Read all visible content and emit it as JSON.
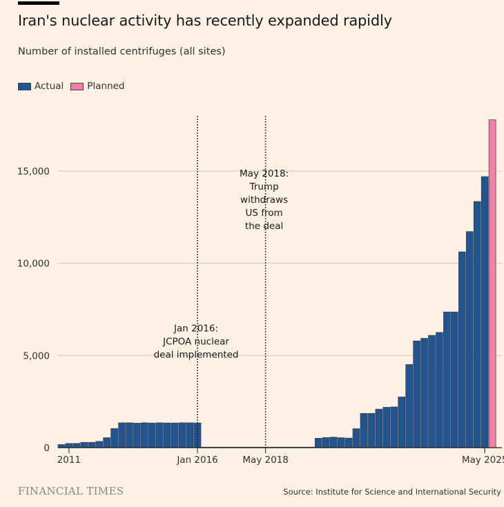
{
  "title": "Iran's nuclear activity has recently expanded rapidly",
  "subtitle": "Number of installed centrifuges (all sites)",
  "legend": {
    "actual": "Actual",
    "planned": "Planned"
  },
  "footer": {
    "brand": "FINANCIAL TIMES",
    "source": "Source: Institute for Science and International Security"
  },
  "colors": {
    "actual": "#1f5592",
    "planned": "#f280aa",
    "background": "#fff1e5",
    "grid": "#cec6b9"
  },
  "chart_data": {
    "type": "bar",
    "ylim": [
      0,
      17500
    ],
    "yticks": [
      0,
      5000,
      10000,
      15000
    ],
    "ytick_labels": [
      "0",
      "5,000",
      "10,000",
      "15,000"
    ],
    "x_labels": [
      {
        "index": 1,
        "label": "2011"
      },
      {
        "index": 18,
        "label": "Jan 2016"
      },
      {
        "index": 27,
        "label": "May 2018"
      },
      {
        "index": 56,
        "label": "May 2025"
      }
    ],
    "annotations": [
      {
        "index": 18,
        "lines": [
          "Jan 2016:",
          "JCPOA nuclear",
          "deal implemented"
        ],
        "value_top": 6300
      },
      {
        "index": 27,
        "lines": [
          "May 2018:",
          "Trump",
          "withdraws",
          "US from",
          "the deal"
        ],
        "value_top": 14700
      }
    ],
    "series": [
      {
        "name": "Actual",
        "values": [
          170,
          230,
          230,
          290,
          290,
          340,
          540,
          1040,
          1350,
          1350,
          1330,
          1350,
          1340,
          1350,
          1340,
          1340,
          1350,
          1350,
          1340,
          30,
          30,
          30,
          30,
          30,
          30,
          30,
          30,
          30,
          30,
          30,
          30,
          30,
          30,
          30,
          510,
          550,
          570,
          540,
          520,
          1030,
          1860,
          1860,
          2090,
          2190,
          2210,
          2750,
          4510,
          5790,
          5930,
          6090,
          6250,
          7360,
          7360,
          10620,
          11720,
          13350,
          14700,
          null
        ]
      },
      {
        "name": "Planned",
        "values": [
          null,
          null,
          null,
          null,
          null,
          null,
          null,
          null,
          null,
          null,
          null,
          null,
          null,
          null,
          null,
          null,
          null,
          null,
          null,
          null,
          null,
          null,
          null,
          null,
          null,
          null,
          null,
          null,
          null,
          null,
          null,
          null,
          null,
          null,
          null,
          null,
          null,
          null,
          null,
          null,
          null,
          null,
          null,
          null,
          null,
          null,
          null,
          null,
          null,
          null,
          null,
          null,
          null,
          null,
          null,
          null,
          null,
          17780
        ]
      }
    ]
  }
}
